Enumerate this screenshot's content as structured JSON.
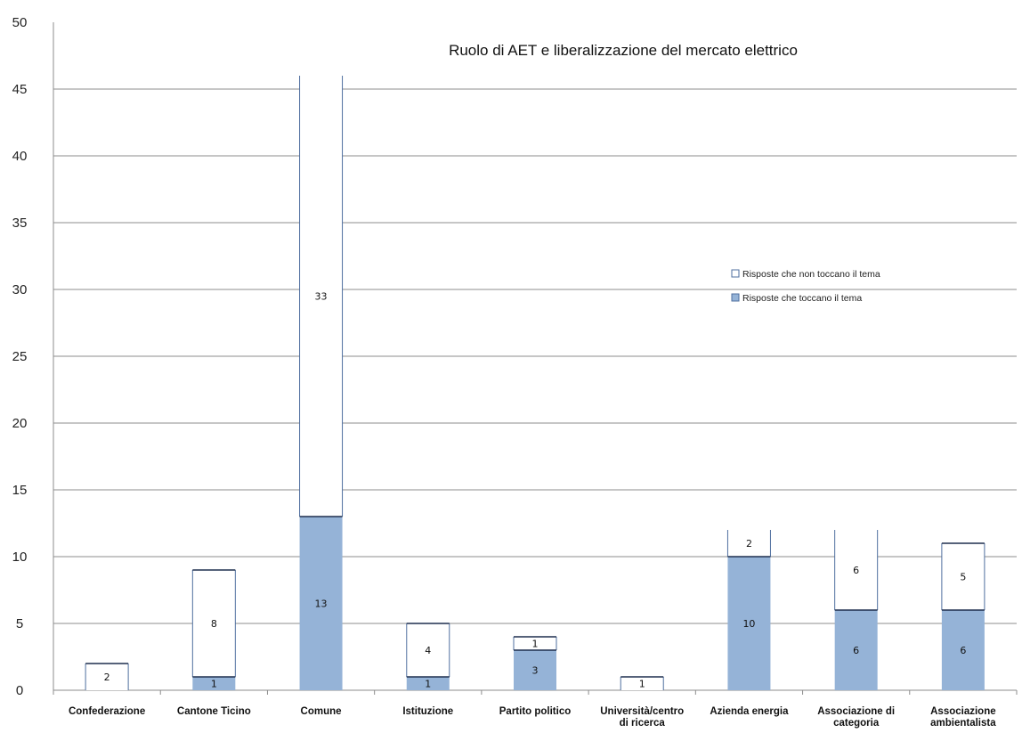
{
  "chart_data": {
    "type": "bar",
    "stacked": true,
    "title": "Ruolo di AET e liberalizzazione del mercato elettrico",
    "xlabel": "",
    "ylabel": "",
    "ylim": [
      0,
      50
    ],
    "yticks": [
      0,
      5,
      10,
      15,
      20,
      25,
      30,
      35,
      40,
      45,
      50
    ],
    "grid": true,
    "legend_position": "right",
    "categories": [
      [
        "Confederazione"
      ],
      [
        "Cantone Ticino"
      ],
      [
        "Comune"
      ],
      [
        "Istituzione"
      ],
      [
        "Partito politico"
      ],
      [
        "Università/centro",
        "di ricerca"
      ],
      [
        "Azienda energia"
      ],
      [
        "Associazione di",
        "categoria"
      ],
      [
        "Associazione",
        "ambientalista"
      ]
    ],
    "series": [
      {
        "name": "Risposte che toccano il tema",
        "color": "#95b3d7",
        "values": [
          0,
          1,
          13,
          1,
          3,
          0,
          10,
          6,
          6
        ],
        "labels": [
          "",
          "1",
          "13",
          "1",
          "3",
          "",
          "10",
          "6",
          "6"
        ]
      },
      {
        "name": "Risposte che non toccano il tema",
        "color": "#ffffff",
        "values": [
          2,
          8,
          33,
          4,
          1,
          1,
          2,
          6,
          5
        ],
        "labels": [
          "2",
          "8",
          "33",
          "4",
          "1",
          "1",
          "2",
          "6",
          "5"
        ]
      }
    ],
    "legend_order": [
      1,
      0
    ]
  }
}
